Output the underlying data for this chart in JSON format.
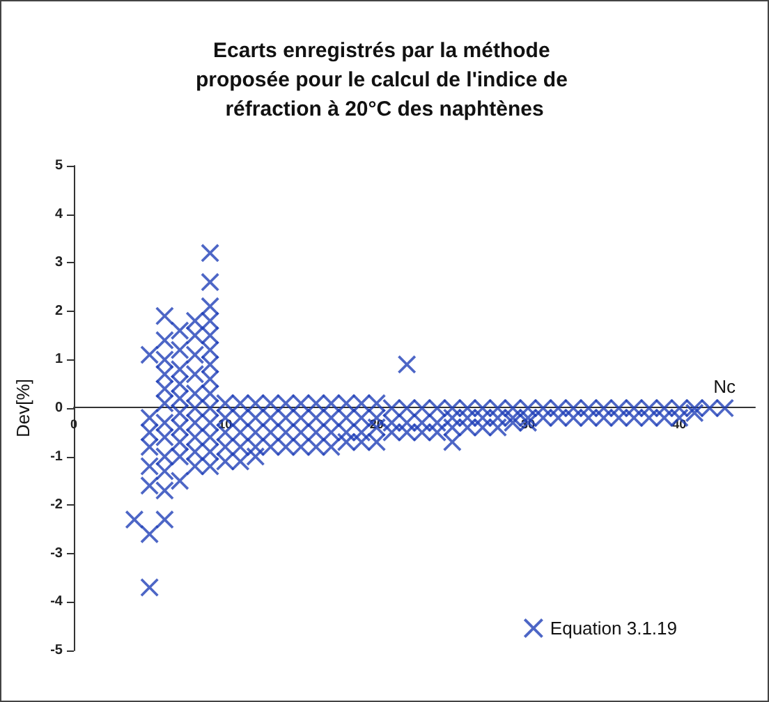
{
  "chart_data": {
    "type": "scatter",
    "title": "Ecarts enregistrés par la méthode proposée pour le calcul de l'indice de réfraction à 20°C des naphtènes",
    "xlabel": "Nc",
    "ylabel": "Dev[%]",
    "xlim": [
      0,
      45
    ],
    "xticks": [
      0,
      10,
      20,
      30,
      40
    ],
    "ylim": [
      -5,
      5
    ],
    "yticks": [
      -5,
      -4,
      -3,
      -2,
      -1,
      0,
      1,
      2,
      3,
      4,
      5
    ],
    "grid": false,
    "legend": "bottom right",
    "marker": "cross",
    "series": [
      {
        "name": "Equation 3.1.19",
        "color": "#2040b8",
        "x": [
          4,
          5,
          5,
          5,
          5,
          5,
          5,
          5,
          5,
          6,
          6,
          6,
          6,
          6,
          6,
          6,
          6,
          6,
          6,
          6,
          6,
          7,
          7,
          7,
          7,
          7,
          7,
          7,
          7,
          7,
          7,
          8,
          8,
          8,
          8,
          8,
          8,
          8,
          8,
          8,
          8,
          9,
          9,
          9,
          9,
          9,
          9,
          9,
          9,
          9,
          9,
          9,
          9,
          9,
          9,
          10,
          10,
          10,
          10,
          10,
          11,
          11,
          11,
          11,
          11,
          12,
          12,
          12,
          12,
          12,
          13,
          13,
          13,
          13,
          14,
          14,
          14,
          14,
          15,
          15,
          15,
          15,
          16,
          16,
          16,
          16,
          17,
          17,
          17,
          17,
          18,
          18,
          18,
          18,
          19,
          19,
          19,
          19,
          20,
          20,
          20,
          20,
          21,
          21,
          21,
          22,
          22,
          22,
          22,
          23,
          23,
          23,
          24,
          24,
          24,
          25,
          25,
          25,
          25,
          26,
          26,
          26,
          27,
          27,
          27,
          28,
          28,
          28,
          29,
          29,
          29,
          30,
          30,
          30,
          31,
          31,
          32,
          32,
          33,
          33,
          34,
          34,
          35,
          35,
          36,
          36,
          37,
          37,
          38,
          38,
          39,
          39,
          40,
          40,
          41,
          41,
          42,
          43
        ],
        "values": [
          -2.3,
          1.1,
          -0.2,
          -0.5,
          -0.8,
          -1.2,
          -1.6,
          -2.6,
          -3.7,
          1.9,
          1.4,
          1.0,
          0.7,
          0.4,
          0.1,
          -0.3,
          -0.6,
          -1.0,
          -1.3,
          -1.7,
          -2.3,
          1.6,
          1.2,
          0.8,
          0.5,
          0.2,
          -0.1,
          -0.4,
          -0.7,
          -1.0,
          -1.5,
          1.8,
          1.5,
          1.1,
          0.7,
          0.3,
          0.0,
          -0.3,
          -0.6,
          -0.9,
          -1.2,
          3.2,
          2.6,
          2.1,
          1.8,
          1.5,
          1.2,
          0.9,
          0.6,
          0.3,
          0.0,
          -0.3,
          -0.6,
          -0.9,
          -1.2,
          0.1,
          -0.2,
          -0.5,
          -0.8,
          -1.1,
          0.1,
          -0.2,
          -0.5,
          -0.8,
          -1.1,
          0.1,
          -0.2,
          -0.5,
          -0.8,
          -1.0,
          0.1,
          -0.2,
          -0.5,
          -0.8,
          0.1,
          -0.2,
          -0.5,
          -0.8,
          0.1,
          -0.2,
          -0.5,
          -0.8,
          0.1,
          -0.2,
          -0.5,
          -0.8,
          0.1,
          -0.2,
          -0.5,
          -0.8,
          0.1,
          -0.2,
          -0.5,
          -0.7,
          0.1,
          -0.2,
          -0.5,
          -0.7,
          0.1,
          -0.2,
          -0.4,
          -0.7,
          0.0,
          -0.3,
          -0.5,
          0.9,
          0.0,
          -0.3,
          -0.5,
          0.0,
          -0.3,
          -0.5,
          0.0,
          -0.3,
          -0.5,
          0.0,
          -0.2,
          -0.4,
          -0.7,
          0.0,
          -0.2,
          -0.4,
          0.0,
          -0.2,
          -0.4,
          0.0,
          -0.2,
          -0.4,
          0.0,
          -0.2,
          -0.3,
          0.0,
          -0.2,
          -0.3,
          0.0,
          -0.2,
          0.0,
          -0.2,
          0.0,
          -0.2,
          0.0,
          -0.2,
          0.0,
          -0.2,
          0.0,
          -0.2,
          0.0,
          -0.2,
          0.0,
          -0.2,
          0.0,
          -0.2,
          0.0,
          -0.2,
          0.0,
          -0.1,
          0.0,
          0.0
        ]
      }
    ]
  }
}
